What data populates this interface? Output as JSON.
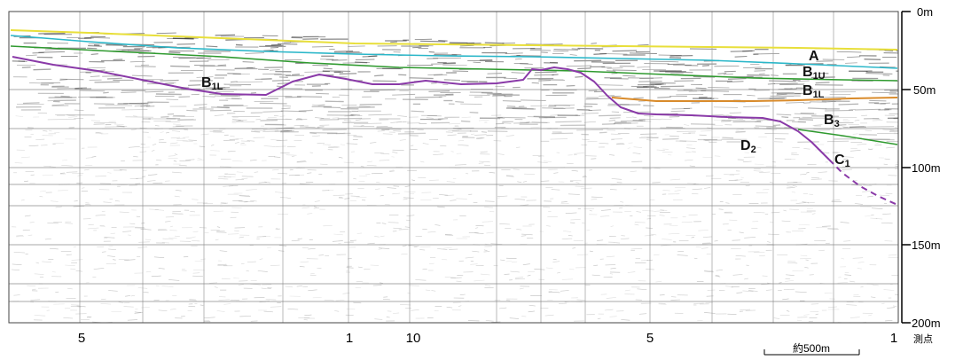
{
  "depth_axis": {
    "unit": "m",
    "ticks": [
      {
        "value": 0,
        "label": "0m"
      },
      {
        "value": 50,
        "label": "50m"
      },
      {
        "value": 100,
        "label": "100m"
      },
      {
        "value": 150,
        "label": "150m"
      },
      {
        "value": 200,
        "label": "200m"
      }
    ]
  },
  "stations": {
    "labels": [
      "5",
      "1",
      "10",
      "5",
      "1"
    ],
    "caption": "測点"
  },
  "scale_bar": {
    "label": "約500m"
  },
  "layers": [
    {
      "id": "A",
      "main": "A",
      "sub": "",
      "color": "#e8df3a"
    },
    {
      "id": "B1U",
      "main": "B",
      "sub": "1U",
      "color": "#2bb7c9"
    },
    {
      "id": "B1L",
      "main": "B",
      "sub": "1L",
      "color": "#2f9a2f"
    },
    {
      "id": "B1L-orange",
      "main": "B",
      "sub": "1L",
      "color": "#d98b2b"
    },
    {
      "id": "B1L-purple",
      "main": "B",
      "sub": "1L",
      "color": "#8a3aa8"
    },
    {
      "id": "B3",
      "main": "B",
      "sub": "3",
      "color": "#2f9a2f"
    },
    {
      "id": "D2",
      "main": "D",
      "sub": "2",
      "color": "#8a3aa8"
    },
    {
      "id": "C1",
      "main": "C",
      "sub": "1",
      "color": "#8a3aa8"
    }
  ]
}
